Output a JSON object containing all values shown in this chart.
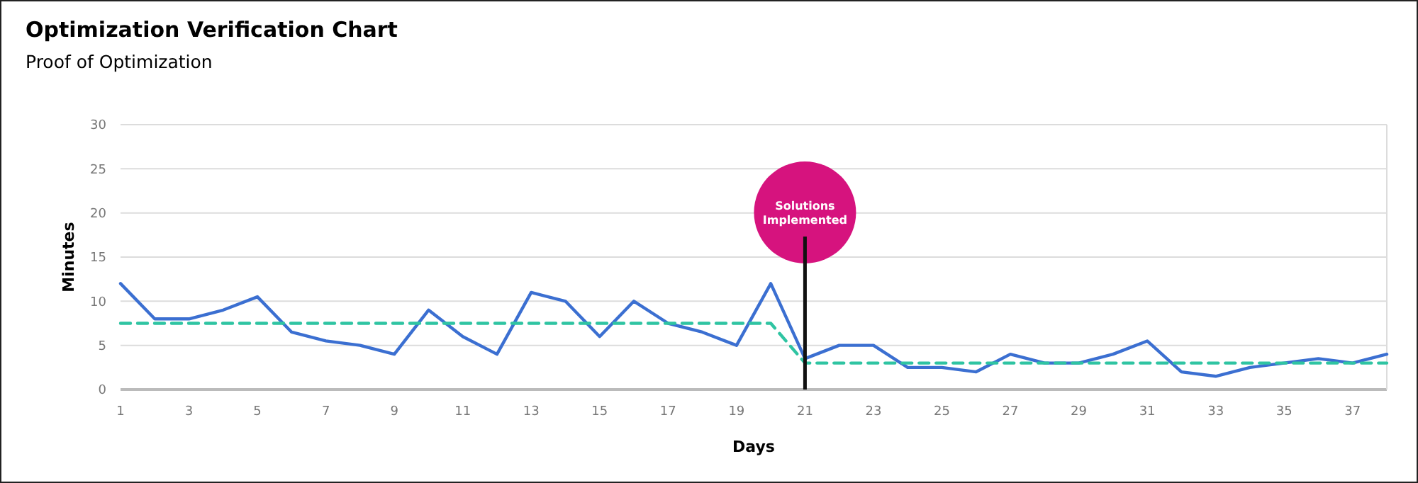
{
  "chart_data": {
    "type": "line",
    "title": "Optimization Verification Chart",
    "subtitle": "Proof of Optimization",
    "xlabel": "Days",
    "ylabel": "Minutes",
    "xlim": [
      1,
      38
    ],
    "xticks": [
      1,
      3,
      5,
      7,
      9,
      11,
      13,
      15,
      17,
      19,
      21,
      23,
      25,
      27,
      29,
      31,
      33,
      35,
      37
    ],
    "ylim": [
      0,
      30
    ],
    "yticks": [
      0,
      5,
      10,
      15,
      20,
      25,
      30
    ],
    "grid": "y",
    "marker": "none",
    "series": [
      {
        "color": "#3b6fd1",
        "line_style": "solid",
        "x": [
          1,
          2,
          3,
          4,
          5,
          6,
          7,
          8,
          9,
          10,
          11,
          12,
          13,
          14,
          15,
          16,
          17,
          18,
          19,
          20,
          21,
          22,
          23,
          24,
          25,
          26,
          27,
          28,
          29,
          30,
          31,
          32,
          33,
          34,
          35,
          36,
          37,
          38
        ],
        "values": [
          12,
          8,
          8,
          9,
          10.5,
          6.5,
          5.5,
          5,
          4,
          9,
          6,
          4,
          11,
          10,
          6,
          10,
          7.5,
          6.5,
          5,
          12,
          3.5,
          5,
          5,
          2.5,
          2.5,
          2,
          4,
          3,
          3,
          4,
          5.5,
          2,
          1.5,
          2.5,
          3,
          3.5,
          3,
          4
        ]
      },
      {
        "color": "#2fc4a2",
        "line_style": "dashed",
        "x": [
          1,
          20,
          21,
          38
        ],
        "values": [
          7.5,
          7.5,
          3,
          3
        ]
      }
    ],
    "ref_lines": [
      {
        "axis": "x",
        "value": 21,
        "label": "Solutions Implemented",
        "color": "#111111"
      }
    ]
  }
}
